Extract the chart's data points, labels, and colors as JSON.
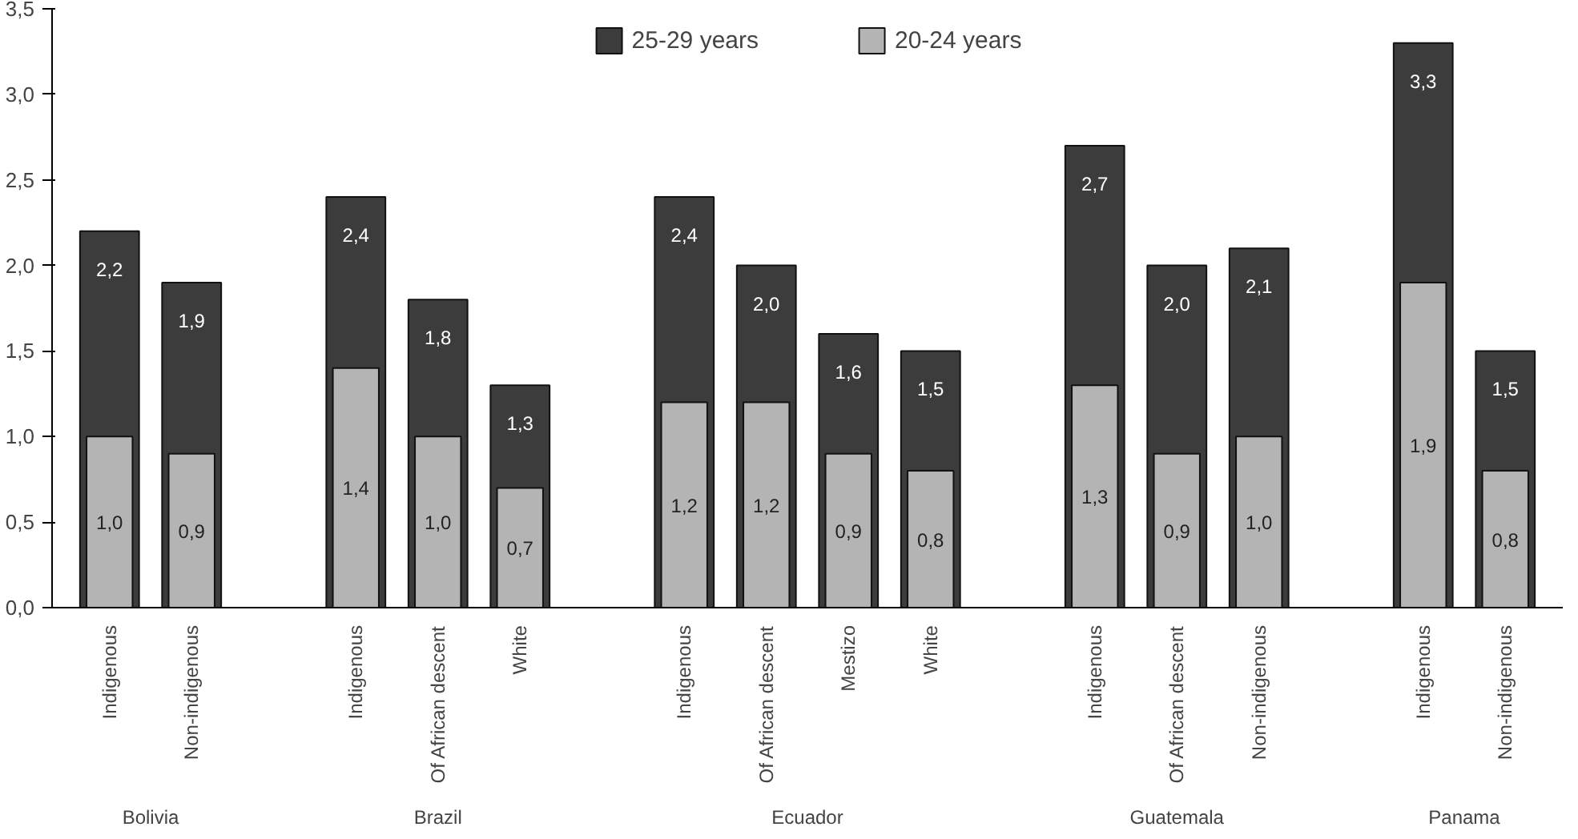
{
  "chart_data": {
    "type": "bar",
    "categories": [
      "Indigenous",
      "Non-indigenous",
      null,
      "Indigenous",
      "Of African descent",
      "White",
      null,
      "Indigenous",
      "Of African descent",
      "Mestizo",
      "White",
      null,
      "Indigenous",
      "Of African descent",
      "Non-indigenous",
      null,
      "Indigenous",
      "Non-indigenous"
    ],
    "series": [
      {
        "name": "25-29 years",
        "color": "#3c3c3c",
        "values": [
          2.2,
          1.9,
          null,
          2.4,
          1.8,
          1.3,
          null,
          2.4,
          2.0,
          1.6,
          1.5,
          null,
          2.7,
          2.0,
          2.1,
          null,
          3.3,
          1.5
        ],
        "value_labels": [
          "2,2",
          "1,9",
          null,
          "2,4",
          "1,8",
          "1,3",
          null,
          "2,4",
          "2,0",
          "1,6",
          "1,5",
          null,
          "2,7",
          "2,0",
          "2,1",
          null,
          "3,3",
          "1,5"
        ]
      },
      {
        "name": "20-24 years",
        "color": "#b4b4b4",
        "values": [
          1.0,
          0.9,
          null,
          1.4,
          1.0,
          0.7,
          null,
          1.2,
          1.2,
          0.9,
          0.8,
          null,
          1.3,
          0.9,
          1.0,
          null,
          1.9,
          0.8
        ],
        "value_labels": [
          "1,0",
          "0,9",
          null,
          "1,4",
          "1,0",
          "0,7",
          null,
          "1,2",
          "1,2",
          "0,9",
          "0,8",
          null,
          "1,3",
          "0,9",
          "1,0",
          null,
          "1,9",
          "0,8"
        ]
      }
    ],
    "annotations": [
      "Bolivia",
      "Brazil",
      "Ecuador",
      "Guatemala",
      "Panama"
    ],
    "ylim": [
      0,
      3.5
    ],
    "yticks": [
      {
        "value": 0,
        "label": "0,0"
      },
      {
        "value": 0.5,
        "label": "0,5"
      },
      {
        "value": 1,
        "label": "1,0"
      },
      {
        "value": 1.5,
        "label": "1,5"
      },
      {
        "value": 2,
        "label": "2,0"
      },
      {
        "value": 2.5,
        "label": "2,5"
      },
      {
        "value": 3,
        "label": "3,0"
      },
      {
        "value": 3.5,
        "label": "3,5"
      }
    ],
    "grid": false,
    "legend": "top"
  }
}
